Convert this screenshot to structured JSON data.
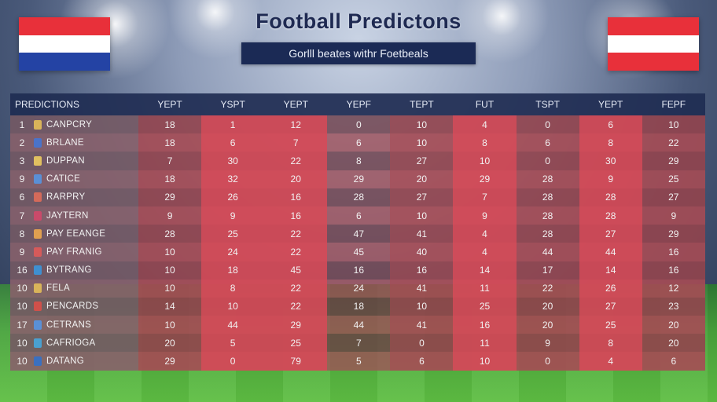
{
  "title": "Football Predictons",
  "subtitle": "Gorlll beates withr Foetbeals",
  "colors": {
    "flag_left": [
      "#e8303a",
      "#ffffff",
      "#2443a4"
    ],
    "flag_right": [
      "#e8303a",
      "#ffffff",
      "#e8303a"
    ],
    "header_bg": "#202c52"
  },
  "columns": [
    "PREDICTIONS",
    "YEPT",
    "YSPT",
    "YEPT",
    "YEPF",
    "TEPT",
    "FUT",
    "TSPT",
    "YEPT",
    "FEPF"
  ],
  "rows": [
    {
      "rank": "1",
      "team": "CANPCRY",
      "icon": "team-crest-icon",
      "values": [
        "18",
        "1",
        "12",
        "0",
        "10",
        "4",
        "0",
        "6",
        "10"
      ]
    },
    {
      "rank": "2",
      "team": "BRLANE",
      "icon": "team-crest-icon",
      "values": [
        "18",
        "6",
        "7",
        "6",
        "10",
        "8",
        "6",
        "8",
        "22"
      ]
    },
    {
      "rank": "3",
      "team": "DUPPAN",
      "icon": "team-crest-icon",
      "values": [
        "7",
        "30",
        "22",
        "8",
        "27",
        "10",
        "0",
        "30",
        "29"
      ]
    },
    {
      "rank": "9",
      "team": "CATICE",
      "icon": "team-crest-icon",
      "values": [
        "18",
        "32",
        "20",
        "29",
        "20",
        "29",
        "28",
        "9",
        "25"
      ]
    },
    {
      "rank": "6",
      "team": "RARPRY",
      "icon": "team-crest-icon",
      "values": [
        "29",
        "26",
        "16",
        "28",
        "27",
        "7",
        "28",
        "28",
        "27"
      ]
    },
    {
      "rank": "7",
      "team": "JAYTERN",
      "icon": "team-crest-icon",
      "values": [
        "9",
        "9",
        "16",
        "6",
        "10",
        "9",
        "28",
        "28",
        "9"
      ]
    },
    {
      "rank": "8",
      "team": "PAY EEANGE",
      "icon": "team-crest-icon",
      "values": [
        "28",
        "25",
        "22",
        "47",
        "41",
        "4",
        "28",
        "27",
        "29"
      ]
    },
    {
      "rank": "9",
      "team": "PAY FRANIG",
      "icon": "team-crest-icon",
      "values": [
        "10",
        "24",
        "22",
        "45",
        "40",
        "4",
        "44",
        "44",
        "16"
      ]
    },
    {
      "rank": "16",
      "team": "BYTRANG",
      "icon": "team-crest-icon",
      "values": [
        "10",
        "18",
        "45",
        "16",
        "16",
        "14",
        "17",
        "14",
        "16"
      ]
    },
    {
      "rank": "10",
      "team": "FELA",
      "icon": "team-crest-icon",
      "values": [
        "10",
        "8",
        "22",
        "24",
        "41",
        "11",
        "22",
        "26",
        "12"
      ]
    },
    {
      "rank": "10",
      "team": "PENCARDS",
      "icon": "team-crest-icon",
      "values": [
        "14",
        "10",
        "22",
        "18",
        "10",
        "25",
        "20",
        "27",
        "23"
      ]
    },
    {
      "rank": "17",
      "team": "CETRANS",
      "icon": "team-crest-icon",
      "values": [
        "10",
        "44",
        "29",
        "44",
        "41",
        "16",
        "20",
        "25",
        "20"
      ]
    },
    {
      "rank": "10",
      "team": "CAFRIOGA",
      "icon": "team-crest-icon",
      "values": [
        "20",
        "5",
        "25",
        "7",
        "0",
        "11",
        "9",
        "8",
        "20"
      ]
    },
    {
      "rank": "10",
      "team": "DATANG",
      "icon": "team-crest-icon",
      "values": [
        "29",
        "0",
        "79",
        "5",
        "6",
        "10",
        "0",
        "4",
        "6"
      ]
    }
  ]
}
